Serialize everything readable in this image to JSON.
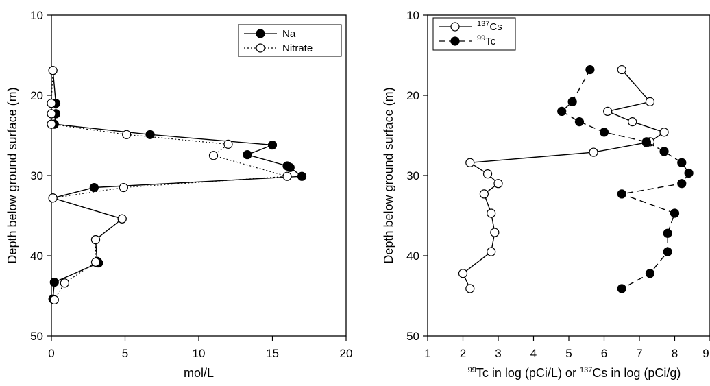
{
  "chart_data": [
    {
      "type": "line",
      "xlabel": "mol/L",
      "ylabel": "Depth below ground surface (m)",
      "xlim": [
        0,
        20
      ],
      "ylim": [
        50,
        10
      ],
      "y_inverted": true,
      "xticks": [
        "0",
        "5",
        "10",
        "15",
        "20"
      ],
      "yticks": [
        "10",
        "20",
        "30",
        "40",
        "50"
      ],
      "legend_position": "top-right",
      "series": [
        {
          "name": "Na",
          "marker": "filled-circle",
          "line": "solid",
          "points": [
            [
              0.1,
              16.9
            ],
            [
              0.3,
              21.0
            ],
            [
              0.3,
              22.3
            ],
            [
              0.2,
              23.6
            ],
            [
              6.7,
              24.9
            ],
            [
              15.0,
              26.2
            ],
            [
              13.3,
              27.4
            ],
            [
              16.0,
              28.8
            ],
            [
              16.2,
              29.0
            ],
            [
              17.0,
              30.1
            ],
            [
              2.9,
              31.5
            ],
            [
              0.1,
              32.8
            ],
            [
              4.8,
              35.4
            ],
            [
              3.0,
              38.0
            ],
            [
              3.1,
              40.7
            ],
            [
              3.2,
              40.9
            ],
            [
              0.2,
              43.3
            ],
            [
              0.1,
              45.4
            ]
          ]
        },
        {
          "name": "Nitrate",
          "marker": "open-circle",
          "line": "dotted",
          "points": [
            [
              0.1,
              16.9
            ],
            [
              0.0,
              21.0
            ],
            [
              0.0,
              22.3
            ],
            [
              0.0,
              23.6
            ],
            [
              5.1,
              24.9
            ],
            [
              12.0,
              26.1
            ],
            [
              11.0,
              27.5
            ],
            [
              16.0,
              30.1
            ],
            [
              4.9,
              31.5
            ],
            [
              0.1,
              32.8
            ],
            [
              4.8,
              35.4
            ],
            [
              3.0,
              38.0
            ],
            [
              3.0,
              40.8
            ],
            [
              0.9,
              43.4
            ],
            [
              0.2,
              45.5
            ]
          ]
        }
      ]
    },
    {
      "type": "line",
      "xlabel": "Tc in log (pCi/L) or Cs in log (pCi/g)",
      "xlabel_parts": {
        "sup1": "99",
        "text1": "Tc in log (pCi/L) or ",
        "sup2": "137",
        "text2": "Cs in log (pCi/g)"
      },
      "ylabel": "Depth below ground surface (m)",
      "xlim": [
        1,
        9
      ],
      "ylim": [
        50,
        10
      ],
      "y_inverted": true,
      "xticks": [
        "1",
        "2",
        "3",
        "4",
        "5",
        "6",
        "7",
        "8",
        "9"
      ],
      "yticks": [
        "10",
        "20",
        "30",
        "40",
        "50"
      ],
      "legend_position": "top-left",
      "series": [
        {
          "name": "Cs",
          "name_sup": "137",
          "marker": "open-circle",
          "line": "solid",
          "points": [
            [
              6.5,
              16.8
            ],
            [
              7.3,
              20.8
            ],
            [
              6.1,
              22.0
            ],
            [
              6.8,
              23.3
            ],
            [
              7.7,
              24.6
            ],
            [
              7.3,
              25.8
            ],
            [
              7.2,
              25.9
            ],
            [
              5.7,
              27.1
            ],
            [
              2.2,
              28.4
            ],
            [
              2.7,
              29.8
            ],
            [
              3.0,
              31.0
            ],
            [
              2.6,
              32.3
            ],
            [
              2.8,
              34.7
            ],
            [
              2.9,
              37.1
            ],
            [
              2.8,
              39.5
            ],
            [
              2.0,
              42.2
            ],
            [
              2.2,
              44.1
            ]
          ]
        },
        {
          "name": "Tc",
          "name_sup": "99",
          "marker": "filled-circle",
          "line": "dashed",
          "points": [
            [
              5.6,
              16.8
            ],
            [
              5.1,
              20.8
            ],
            [
              4.8,
              22.0
            ],
            [
              5.3,
              23.3
            ],
            [
              6.0,
              24.6
            ],
            [
              7.2,
              25.8
            ],
            [
              7.7,
              27.0
            ],
            [
              8.2,
              28.4
            ],
            [
              8.4,
              29.7
            ],
            [
              8.2,
              31.0
            ],
            [
              6.5,
              32.3
            ],
            [
              8.0,
              34.7
            ],
            [
              7.8,
              37.2
            ],
            [
              7.8,
              39.5
            ],
            [
              7.3,
              42.2
            ],
            [
              6.5,
              44.1
            ]
          ]
        }
      ]
    }
  ]
}
